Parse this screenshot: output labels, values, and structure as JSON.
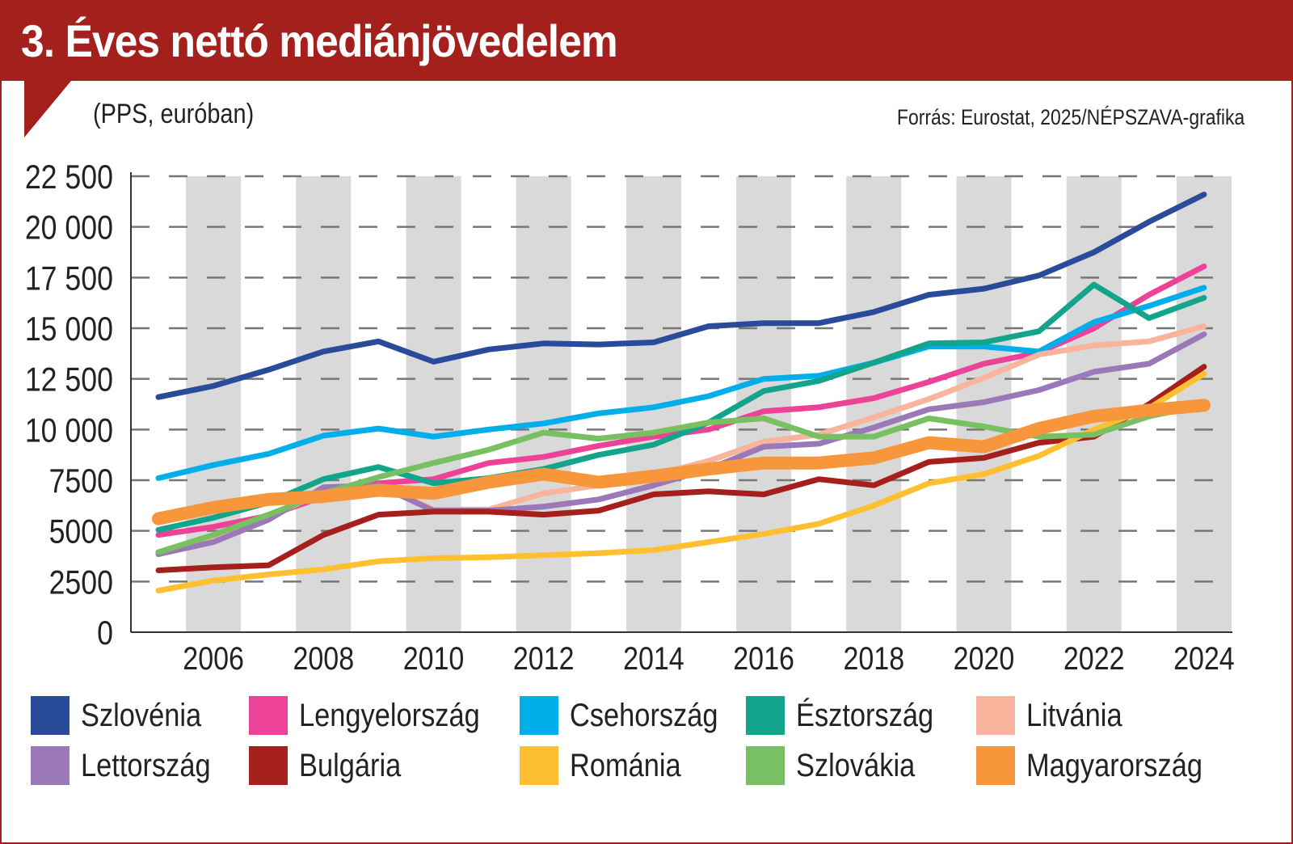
{
  "header": {
    "title": "3. Éves nettó mediánjövedelem",
    "subtitle": "(PPS, euróban)",
    "source": "Forrás: Eurostat, 2025/NÉPSZAVA-grafika"
  },
  "colors": {
    "header": "#a3201d",
    "band": "#d9d9d9"
  },
  "chart_data": {
    "type": "line",
    "title": "3. Éves nettó mediánjövedelem",
    "ylabel": "(PPS, euróban)",
    "xlabel": "",
    "ylim": [
      0,
      22500
    ],
    "xlim": [
      2005,
      2024
    ],
    "y_ticks": [
      0,
      2500,
      5000,
      7500,
      10000,
      12500,
      15000,
      17500,
      20000,
      22500
    ],
    "y_tick_labels": [
      "0",
      "2500",
      "5000",
      "7500",
      "10 000",
      "12 500",
      "15 000",
      "17 500",
      "20 000",
      "22 500"
    ],
    "x_tick_labels": [
      "2006",
      "2008",
      "2010",
      "2012",
      "2014",
      "2016",
      "2018",
      "2020",
      "2022",
      "2024"
    ],
    "x_ticks": [
      2006,
      2008,
      2010,
      2012,
      2014,
      2016,
      2018,
      2020,
      2022,
      2024
    ],
    "grid": "horizontal dashed, alternating vertical bands",
    "legend": "bottom",
    "x": [
      2005,
      2006,
      2007,
      2008,
      2009,
      2010,
      2011,
      2012,
      2013,
      2014,
      2015,
      2016,
      2017,
      2018,
      2019,
      2020,
      2021,
      2022,
      2023,
      2024
    ],
    "series": [
      {
        "name": "Szlovénia",
        "color": "#2a4a9a",
        "width": 7,
        "values": [
          11600,
          12150,
          12950,
          13850,
          14350,
          13350,
          13950,
          14250,
          14200,
          14300,
          15100,
          15250,
          15250,
          15800,
          16650,
          16950,
          17600,
          18750,
          20250,
          21600
        ]
      },
      {
        "name": "Lengyelország",
        "color": "#ec4399",
        "width": 7,
        "values": [
          4800,
          5200,
          5750,
          6700,
          7350,
          7550,
          8350,
          8650,
          9200,
          9650,
          10000,
          10900,
          11100,
          11550,
          12350,
          13250,
          13800,
          15000,
          16650,
          18050
        ]
      },
      {
        "name": "Csehország",
        "color": "#00aeea",
        "width": 7,
        "values": [
          7600,
          8250,
          8800,
          9700,
          10050,
          9650,
          10000,
          10300,
          10800,
          11100,
          11650,
          12500,
          12650,
          13300,
          14100,
          14100,
          13850,
          15300,
          16100,
          17000
        ]
      },
      {
        "name": "Észtország",
        "color": "#13a58b",
        "width": 7,
        "values": [
          5050,
          5650,
          6400,
          7550,
          8150,
          7350,
          7600,
          8050,
          8750,
          9250,
          10350,
          11900,
          12400,
          13300,
          14250,
          14300,
          14850,
          17150,
          15500,
          16500
        ]
      },
      {
        "name": "Litvánia",
        "color": "#f8b49c",
        "width": 7,
        "values": [
          3850,
          4650,
          5650,
          6950,
          7250,
          6050,
          6050,
          6850,
          7250,
          7750,
          8450,
          9400,
          9750,
          10600,
          11500,
          12550,
          13700,
          14150,
          14350,
          15100
        ]
      },
      {
        "name": "Lettország",
        "color": "#9b78b8",
        "width": 7,
        "values": [
          3850,
          4450,
          5550,
          7150,
          7250,
          6000,
          6000,
          6200,
          6550,
          7250,
          8050,
          9150,
          9300,
          10100,
          11000,
          11350,
          11950,
          12850,
          13250,
          14700
        ]
      },
      {
        "name": "Bulgária",
        "color": "#a51f1c",
        "width": 7,
        "values": [
          3050,
          3200,
          3300,
          4800,
          5800,
          5950,
          5950,
          5800,
          6000,
          6800,
          6950,
          6800,
          7550,
          7250,
          8400,
          8600,
          9350,
          9650,
          11250,
          13100
        ]
      },
      {
        "name": "Románia",
        "color": "#fec031",
        "width": 7,
        "values": [
          2050,
          2550,
          2850,
          3100,
          3500,
          3650,
          3700,
          3800,
          3900,
          4050,
          4450,
          4850,
          5350,
          6250,
          7350,
          7800,
          8700,
          10000,
          11050,
          12750
        ]
      },
      {
        "name": "Szlovákia",
        "color": "#78c061",
        "width": 7,
        "values": [
          3950,
          4800,
          5800,
          6850,
          7650,
          8350,
          9000,
          9850,
          9550,
          9850,
          10350,
          10550,
          9650,
          9650,
          10550,
          10150,
          9650,
          9750,
          10650,
          11200
        ]
      },
      {
        "name": "Magyarország",
        "color": "#f7963a",
        "width": 16,
        "values": [
          5600,
          6150,
          6550,
          6700,
          7000,
          6850,
          7400,
          7800,
          7400,
          7700,
          8050,
          8350,
          8350,
          8600,
          9350,
          9150,
          10050,
          10650,
          10950,
          11200
        ]
      }
    ]
  }
}
